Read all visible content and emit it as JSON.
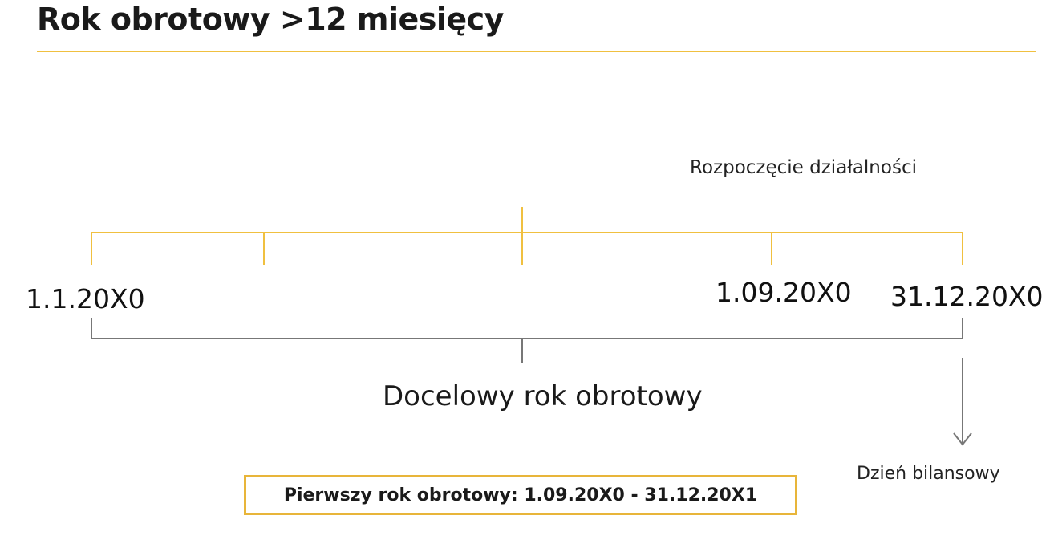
{
  "slide": {
    "title": "Rok obrotowy >12 miesięcy"
  },
  "timeline": {
    "start_of_business_label": "Rozpoczęcie działalności",
    "dates": {
      "start": "1.1.20X0",
      "business_start": "1.09.20X0",
      "end": "31.12.20X0"
    },
    "target_year_label": "Docelowy rok obrotowy",
    "balance_day_label": "Dzień bilansowy",
    "first_year_text": "Pierwszy rok obrotowy: 1.09.20X0 - 31.12.20X1"
  },
  "colors": {
    "accent": "#f0c040",
    "gray_bracket": "#777777",
    "box_border": "#e8b53a"
  }
}
